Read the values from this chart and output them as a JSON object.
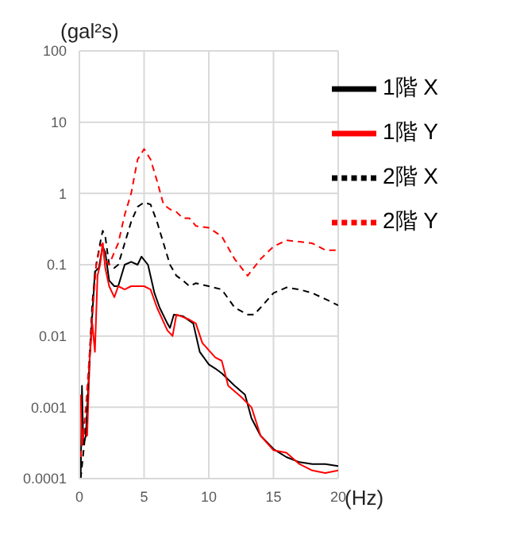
{
  "chart_data": {
    "type": "line",
    "xlabel": "(Hz)",
    "ylabel": "(gal²s)",
    "log": "y",
    "xlim": [
      0,
      20
    ],
    "xticks": [
      0,
      5,
      10,
      15,
      20
    ],
    "ylim": [
      0.0001,
      100
    ],
    "yticks": [
      0.0001,
      0.001,
      0.01,
      0.1,
      1,
      10,
      100
    ],
    "grid": true,
    "legend": "top right",
    "marker": "none",
    "series": [
      {
        "name": "1階 X",
        "color": "#000000",
        "line_style": "solid",
        "x": [
          0.1,
          0.2,
          0.3,
          0.5,
          0.8,
          1.0,
          1.2,
          1.5,
          1.8,
          2.0,
          2.3,
          2.7,
          3.0,
          3.5,
          4.0,
          4.5,
          4.8,
          5.3,
          5.8,
          6.2,
          6.8,
          7.0,
          7.3,
          8,
          8.8,
          9.3,
          10,
          10.5,
          11,
          12,
          12.8,
          13.3,
          14,
          15,
          16,
          17,
          18,
          19,
          20
        ],
        "values": [
          0.0001,
          0.002,
          0.0003,
          0.0004,
          0.005,
          0.02,
          0.08,
          0.09,
          0.18,
          0.15,
          0.06,
          0.05,
          0.05,
          0.1,
          0.11,
          0.1,
          0.13,
          0.1,
          0.04,
          0.025,
          0.015,
          0.013,
          0.02,
          0.019,
          0.015,
          0.006,
          0.004,
          0.0035,
          0.003,
          0.002,
          0.0015,
          0.0007,
          0.0004,
          0.00026,
          0.0002,
          0.00017,
          0.00016,
          0.00016,
          0.00015
        ]
      },
      {
        "name": "1階 Y",
        "color": "#ff0000",
        "line_style": "solid",
        "x": [
          0.1,
          0.2,
          0.4,
          0.6,
          0.8,
          1.0,
          1.2,
          1.4,
          1.6,
          1.8,
          2.0,
          2.3,
          2.7,
          3.0,
          3.5,
          4.0,
          4.5,
          5.0,
          5.5,
          6.0,
          6.8,
          7.2,
          7.5,
          8.5,
          9,
          9.5,
          10.5,
          11,
          11.5,
          12.5,
          13.3,
          14,
          15,
          16,
          17,
          18,
          19,
          20
        ],
        "values": [
          0.0015,
          0.0003,
          0.0005,
          0.0004,
          0.005,
          0.015,
          0.006,
          0.07,
          0.1,
          0.2,
          0.09,
          0.05,
          0.035,
          0.05,
          0.045,
          0.05,
          0.05,
          0.05,
          0.045,
          0.025,
          0.012,
          0.01,
          0.02,
          0.017,
          0.015,
          0.008,
          0.005,
          0.0045,
          0.002,
          0.0014,
          0.001,
          0.0004,
          0.00025,
          0.00023,
          0.00016,
          0.00013,
          0.00012,
          0.00013
        ]
      },
      {
        "name": "2階 X",
        "color": "#000000",
        "line_style": "dashed",
        "x": [
          0.1,
          0.5,
          1.0,
          1.3,
          1.6,
          1.8,
          2.0,
          2.3,
          2.7,
          3.0,
          3.5,
          4.0,
          4.5,
          5.0,
          5.5,
          6.0,
          6.5,
          7.0,
          7.5,
          8.0,
          8.5,
          9,
          10,
          11,
          12,
          13,
          13.5,
          14,
          15,
          16,
          17,
          18,
          19,
          20
        ],
        "values": [
          0.0001,
          0.0005,
          0.03,
          0.1,
          0.2,
          0.3,
          0.25,
          0.1,
          0.09,
          0.1,
          0.2,
          0.4,
          0.65,
          0.75,
          0.7,
          0.4,
          0.2,
          0.1,
          0.07,
          0.06,
          0.05,
          0.055,
          0.05,
          0.045,
          0.025,
          0.02,
          0.02,
          0.025,
          0.04,
          0.048,
          0.045,
          0.04,
          0.033,
          0.027
        ]
      },
      {
        "name": "2階 Y",
        "color": "#ff0000",
        "line_style": "dashed",
        "x": [
          0.1,
          0.5,
          1.0,
          1.3,
          1.6,
          1.8,
          2.0,
          2.3,
          2.7,
          3.0,
          3.5,
          4.0,
          4.5,
          5.0,
          5.5,
          6.0,
          6.5,
          7.0,
          7.5,
          8.0,
          8.5,
          9,
          10,
          11,
          12,
          13,
          14,
          15,
          16,
          17,
          18,
          19,
          20
        ],
        "values": [
          0.0002,
          0.001,
          0.02,
          0.1,
          0.18,
          0.2,
          0.12,
          0.1,
          0.15,
          0.2,
          0.5,
          1.0,
          3.0,
          4.2,
          3.0,
          1.5,
          0.7,
          0.6,
          0.55,
          0.45,
          0.45,
          0.35,
          0.33,
          0.25,
          0.12,
          0.07,
          0.12,
          0.18,
          0.22,
          0.21,
          0.2,
          0.16,
          0.16
        ]
      }
    ]
  }
}
